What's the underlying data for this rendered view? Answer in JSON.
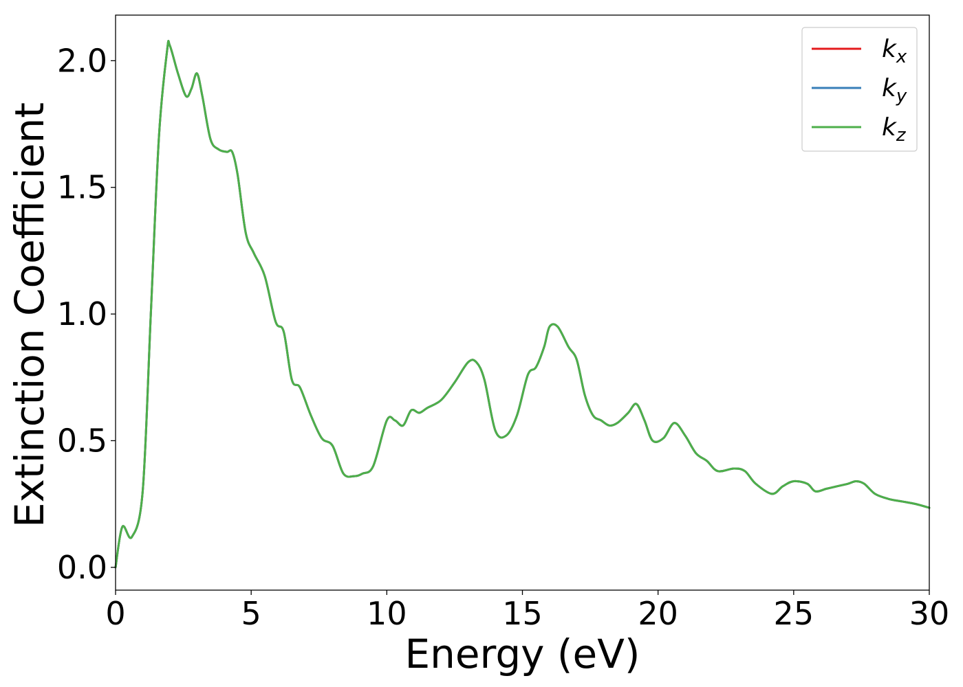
{
  "chart_data": {
    "type": "line",
    "xlabel": "Energy (eV)",
    "ylabel": "Extinction Coefficient",
    "xlim": [
      0,
      30
    ],
    "ylim": [
      -0.09,
      2.18
    ],
    "xticks": [
      0,
      5,
      10,
      15,
      20,
      25,
      30
    ],
    "xtick_labels": [
      "0",
      "5",
      "10",
      "15",
      "20",
      "25",
      "30"
    ],
    "yticks": [
      0.0,
      0.5,
      1.0,
      1.5,
      2.0
    ],
    "ytick_labels": [
      "0.0",
      "0.5",
      "1.0",
      "1.5",
      "2.0"
    ],
    "grid": false,
    "legend_position": "top-right",
    "x": [
      0,
      0.25,
      0.6,
      1.0,
      1.3,
      1.6,
      1.9,
      2.0,
      2.3,
      2.6,
      2.8,
      3.0,
      3.2,
      3.5,
      3.8,
      4.1,
      4.3,
      4.5,
      4.8,
      5.1,
      5.5,
      5.9,
      6.2,
      6.5,
      6.8,
      7.2,
      7.6,
      8.0,
      8.4,
      8.8,
      9.1,
      9.5,
      10.0,
      10.3,
      10.6,
      10.9,
      11.2,
      11.5,
      12.0,
      12.5,
      13.0,
      13.3,
      13.6,
      14.0,
      14.4,
      14.8,
      15.2,
      15.5,
      15.8,
      16.0,
      16.3,
      16.7,
      17.0,
      17.3,
      17.6,
      17.9,
      18.2,
      18.5,
      18.9,
      19.2,
      19.5,
      19.8,
      20.2,
      20.6,
      21.0,
      21.4,
      21.8,
      22.2,
      22.8,
      23.2,
      23.6,
      24.2,
      24.6,
      25.0,
      25.5,
      25.8,
      26.2,
      26.6,
      27.0,
      27.3,
      27.6,
      28.0,
      28.5,
      29.0,
      29.5,
      30.0
    ],
    "series": [
      {
        "name": "k_x",
        "label_main": "k",
        "label_sub": "x",
        "color": "#e41a1c",
        "y": [
          0.0,
          0.16,
          0.12,
          0.3,
          1.0,
          1.7,
          2.04,
          2.06,
          1.95,
          1.86,
          1.89,
          1.95,
          1.86,
          1.69,
          1.65,
          1.64,
          1.64,
          1.55,
          1.32,
          1.24,
          1.15,
          0.97,
          0.93,
          0.74,
          0.71,
          0.6,
          0.51,
          0.48,
          0.37,
          0.36,
          0.37,
          0.4,
          0.58,
          0.58,
          0.56,
          0.62,
          0.61,
          0.63,
          0.66,
          0.73,
          0.81,
          0.81,
          0.74,
          0.54,
          0.52,
          0.6,
          0.76,
          0.79,
          0.87,
          0.95,
          0.95,
          0.87,
          0.82,
          0.68,
          0.6,
          0.58,
          0.56,
          0.57,
          0.61,
          0.645,
          0.58,
          0.5,
          0.51,
          0.57,
          0.52,
          0.45,
          0.42,
          0.38,
          0.39,
          0.38,
          0.33,
          0.29,
          0.32,
          0.34,
          0.33,
          0.3,
          0.31,
          0.32,
          0.33,
          0.34,
          0.33,
          0.29,
          0.27,
          0.26,
          0.25,
          0.235
        ]
      },
      {
        "name": "k_y",
        "label_main": "k",
        "label_sub": "y",
        "color": "#377eb8",
        "y": [
          0.0,
          0.16,
          0.12,
          0.3,
          1.0,
          1.7,
          2.04,
          2.06,
          1.95,
          1.86,
          1.89,
          1.95,
          1.86,
          1.69,
          1.65,
          1.64,
          1.64,
          1.55,
          1.32,
          1.24,
          1.15,
          0.97,
          0.93,
          0.74,
          0.71,
          0.6,
          0.51,
          0.48,
          0.37,
          0.36,
          0.37,
          0.4,
          0.58,
          0.58,
          0.56,
          0.62,
          0.61,
          0.63,
          0.66,
          0.73,
          0.81,
          0.81,
          0.74,
          0.54,
          0.52,
          0.6,
          0.76,
          0.79,
          0.87,
          0.95,
          0.95,
          0.87,
          0.82,
          0.68,
          0.6,
          0.58,
          0.56,
          0.57,
          0.61,
          0.645,
          0.58,
          0.5,
          0.51,
          0.57,
          0.52,
          0.45,
          0.42,
          0.38,
          0.39,
          0.38,
          0.33,
          0.29,
          0.32,
          0.34,
          0.33,
          0.3,
          0.31,
          0.32,
          0.33,
          0.34,
          0.33,
          0.29,
          0.27,
          0.26,
          0.25,
          0.235
        ]
      },
      {
        "name": "k_z",
        "label_main": "k",
        "label_sub": "z",
        "color": "#4daf4a",
        "y": [
          0.0,
          0.16,
          0.12,
          0.3,
          1.0,
          1.7,
          2.04,
          2.06,
          1.95,
          1.86,
          1.89,
          1.95,
          1.86,
          1.69,
          1.65,
          1.64,
          1.64,
          1.55,
          1.32,
          1.24,
          1.15,
          0.97,
          0.93,
          0.74,
          0.71,
          0.6,
          0.51,
          0.48,
          0.37,
          0.36,
          0.37,
          0.4,
          0.58,
          0.58,
          0.56,
          0.62,
          0.61,
          0.63,
          0.66,
          0.73,
          0.81,
          0.81,
          0.74,
          0.54,
          0.52,
          0.6,
          0.76,
          0.79,
          0.87,
          0.95,
          0.95,
          0.87,
          0.82,
          0.68,
          0.6,
          0.58,
          0.56,
          0.57,
          0.61,
          0.645,
          0.58,
          0.5,
          0.51,
          0.57,
          0.52,
          0.45,
          0.42,
          0.38,
          0.39,
          0.38,
          0.33,
          0.29,
          0.32,
          0.34,
          0.33,
          0.3,
          0.31,
          0.32,
          0.33,
          0.34,
          0.33,
          0.29,
          0.27,
          0.26,
          0.25,
          0.235
        ]
      }
    ]
  }
}
